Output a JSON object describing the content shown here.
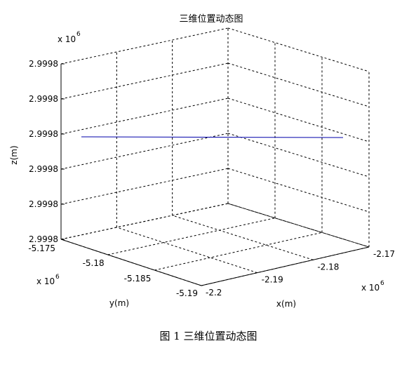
{
  "chart_data": {
    "type": "line",
    "title": "三维位置动态图",
    "xlabel": "x(m)",
    "ylabel": "y(m)",
    "zlabel": "z(m)",
    "x_exponent": "x 10",
    "y_exponent": "x 10",
    "z_exponent": "x 10",
    "exponent_power": "6",
    "x_ticks": [
      "-2.2",
      "-2.19",
      "-2.18",
      "-2.17"
    ],
    "y_ticks": [
      "-5.175",
      "-5.18",
      "-5.185",
      "-5.19"
    ],
    "z_ticks": [
      "2.9998",
      "2.9998",
      "2.9998",
      "2.9998",
      "2.9998",
      "2.9998"
    ],
    "grid": true,
    "series": [
      {
        "color": "#0000aa"
      }
    ]
  },
  "caption": "图 1  三维位置动态图"
}
